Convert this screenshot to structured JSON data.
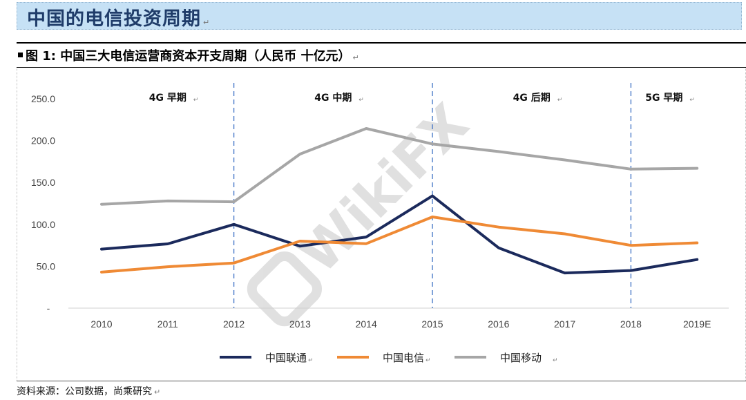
{
  "page_title": "中国的电信投资周期",
  "figure_title": "图 1: 中国三大电信运营商资本开支周期（人民币 十亿元）",
  "source": "资料来源：公司数据，尚乘研究",
  "return_mark": "↵",
  "watermark_text": "WikiFX",
  "colors": {
    "china_unicom": "#1b2a5c",
    "china_telecom": "#ef8a35",
    "china_mobile": "#a6a6a6",
    "divider": "#3a6fc4",
    "title_bar_bg": "#c6e1f5",
    "title_text": "#1f3c69"
  },
  "chart_data": {
    "type": "line",
    "x": [
      "2010",
      "2011",
      "2012",
      "2013",
      "2014",
      "2015",
      "2016",
      "2017",
      "2018",
      "2019E"
    ],
    "ylim": [
      0,
      250
    ],
    "yticks": [
      "-",
      "50.0",
      "100.0",
      "150.0",
      "200.0",
      "250.0"
    ],
    "series": [
      {
        "name": "中国联通",
        "key": "china_unicom",
        "values": [
          70.5,
          76.7,
          100.0,
          74.0,
          84.9,
          134.0,
          72.0,
          42.0,
          44.9,
          58.0
        ]
      },
      {
        "name": "中国电信",
        "key": "china_telecom",
        "values": [
          43.0,
          49.4,
          53.9,
          80.0,
          77.0,
          108.9,
          96.8,
          88.7,
          74.9,
          78.0
        ]
      },
      {
        "name": "中国移动",
        "key": "china_mobile",
        "values": [
          124.0,
          128.0,
          127.0,
          184.0,
          214.5,
          196.0,
          187.0,
          177.0,
          166.0,
          167.0
        ]
      }
    ],
    "phase_dividers_after": [
      "2012",
      "2015",
      "2018"
    ],
    "phases": [
      {
        "label": "4G 早期",
        "start": "2010",
        "end": "2012"
      },
      {
        "label": "4G 中期",
        "start": "2012",
        "end": "2015"
      },
      {
        "label": "4G 后期",
        "start": "2015",
        "end": "2018"
      },
      {
        "label": "5G 早期",
        "start": "2018",
        "end": "2019E"
      }
    ],
    "legend_position": "bottom-center",
    "grid": false
  }
}
